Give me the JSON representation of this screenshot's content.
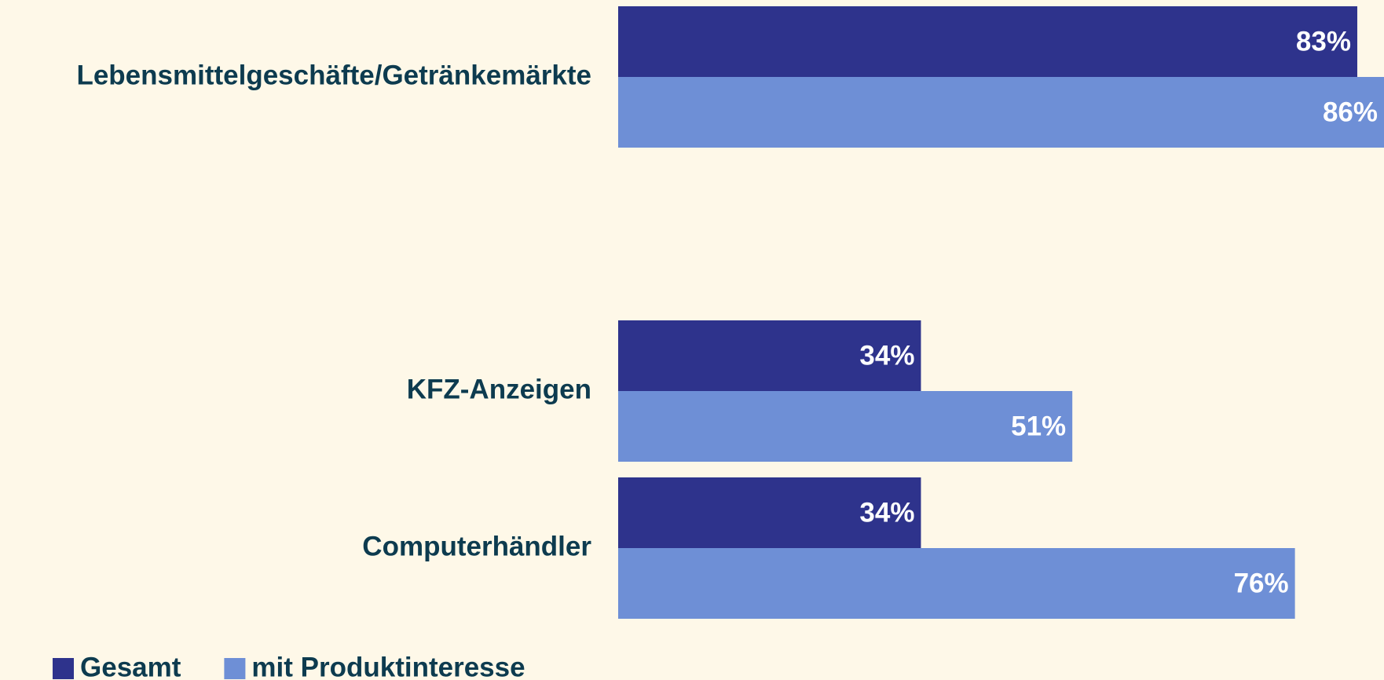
{
  "chart_data": {
    "type": "hbar",
    "categories": [
      "Lebensmittelgeschäfte/Getränkemärkte",
      null,
      "KFZ-Anzeigen",
      "Computerhändler"
    ],
    "series": [
      {
        "name": "Gesamt",
        "color": "#2e338c",
        "values": [
          83,
          null,
          34,
          34
        ],
        "value_labels": [
          "83%",
          null,
          "34%",
          "34%"
        ]
      },
      {
        "name": "mit Produktinteresse",
        "color": "#6e8fd6",
        "values": [
          86,
          null,
          51,
          76
        ],
        "value_labels": [
          "86%",
          null,
          "51%",
          "76%"
        ]
      }
    ],
    "xlim": [
      0,
      86
    ],
    "legend": "bottom-left"
  }
}
